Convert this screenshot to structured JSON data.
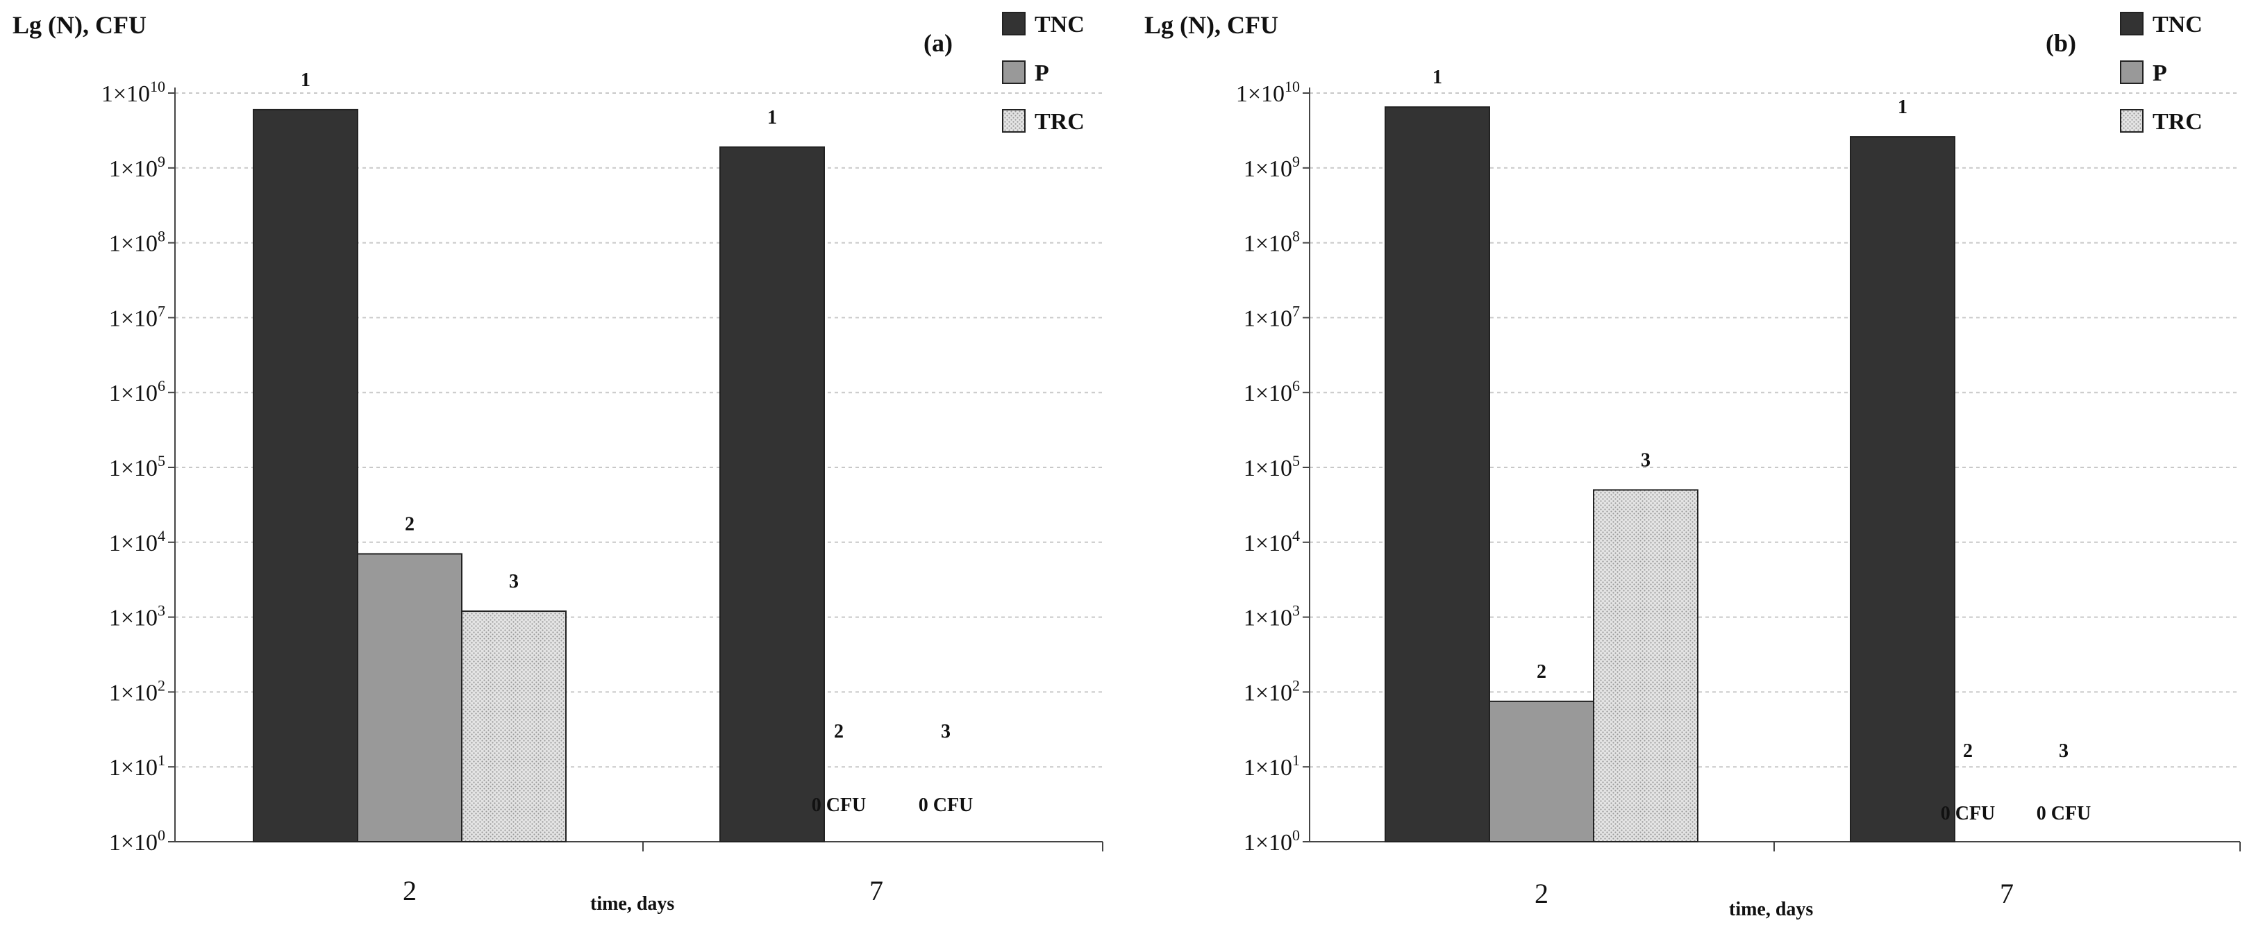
{
  "chart_data": [
    {
      "type": "bar",
      "panel_label": "(a)",
      "ylabel": "Lg (N), CFU",
      "xlabel": "time, days",
      "categories": [
        "2",
        "7"
      ],
      "yscale": "log",
      "ylim": [
        1,
        10000000000
      ],
      "ytick_exponents": [
        "0",
        "1",
        "2",
        "3",
        "4",
        "5",
        "6",
        "7",
        "8",
        "9",
        "10"
      ],
      "grid": "horizontal dotted",
      "legend_position": "top-right",
      "series": [
        {
          "name": "TNC",
          "color": "#333333",
          "pattern": "solid",
          "values": [
            6000000000,
            1900000000
          ],
          "labels": [
            "1",
            "1"
          ]
        },
        {
          "name": "P",
          "color": "#999999",
          "pattern": "solid",
          "values": [
            7000,
            0
          ],
          "labels": [
            "2",
            "2"
          ]
        },
        {
          "name": "TRC",
          "color": "#dcdcdc",
          "pattern": "dotted",
          "values": [
            1200,
            0
          ],
          "labels": [
            "3",
            "3"
          ]
        }
      ],
      "zero_annotations": [
        "0  CFU",
        "0  CFU"
      ]
    },
    {
      "type": "bar",
      "panel_label": "(b)",
      "ylabel": "Lg (N), CFU",
      "xlabel": "time, days",
      "categories": [
        "2",
        "7"
      ],
      "yscale": "log",
      "ylim": [
        1,
        10000000000
      ],
      "ytick_exponents": [
        "0",
        "1",
        "2",
        "3",
        "4",
        "5",
        "6",
        "7",
        "8",
        "9",
        "10"
      ],
      "grid": "horizontal dotted",
      "legend_position": "top-right",
      "series": [
        {
          "name": "TNC",
          "color": "#333333",
          "pattern": "solid",
          "values": [
            6500000000,
            2600000000
          ],
          "labels": [
            "1",
            "1"
          ]
        },
        {
          "name": "P",
          "color": "#999999",
          "pattern": "solid",
          "values": [
            75,
            0
          ],
          "labels": [
            "2",
            "2"
          ]
        },
        {
          "name": "TRC",
          "color": "#dcdcdc",
          "pattern": "dotted",
          "values": [
            50000,
            0
          ],
          "labels": [
            "3",
            "3"
          ]
        }
      ],
      "zero_annotations": [
        "0  CFU",
        "0  CFU"
      ]
    }
  ]
}
